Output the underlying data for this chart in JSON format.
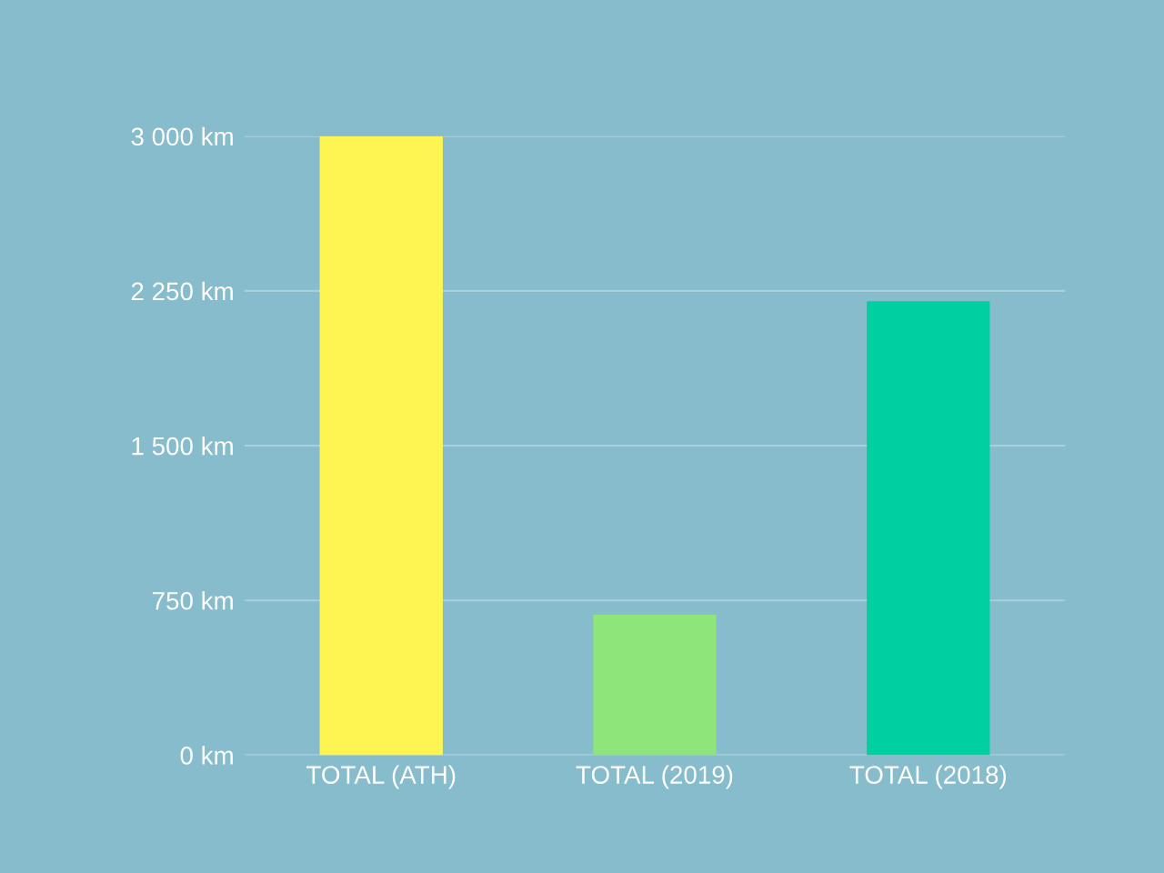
{
  "chart_data": {
    "type": "bar",
    "categories": [
      "TOTAL (ATH)",
      "TOTAL (2019)",
      "TOTAL (2018)"
    ],
    "values": [
      3000,
      680,
      2200
    ],
    "colors": [
      "#fff552",
      "#8ee57a",
      "#00cfa2"
    ],
    "ylim": [
      0,
      3000
    ],
    "yticks": [
      {
        "value": 0,
        "label": "0 km"
      },
      {
        "value": 750,
        "label": "750 km"
      },
      {
        "value": 1500,
        "label": "1 500 km"
      },
      {
        "value": 2250,
        "label": "2 250 km"
      },
      {
        "value": 3000,
        "label": "3 000 km"
      }
    ],
    "grid": "y",
    "legend": false
  }
}
